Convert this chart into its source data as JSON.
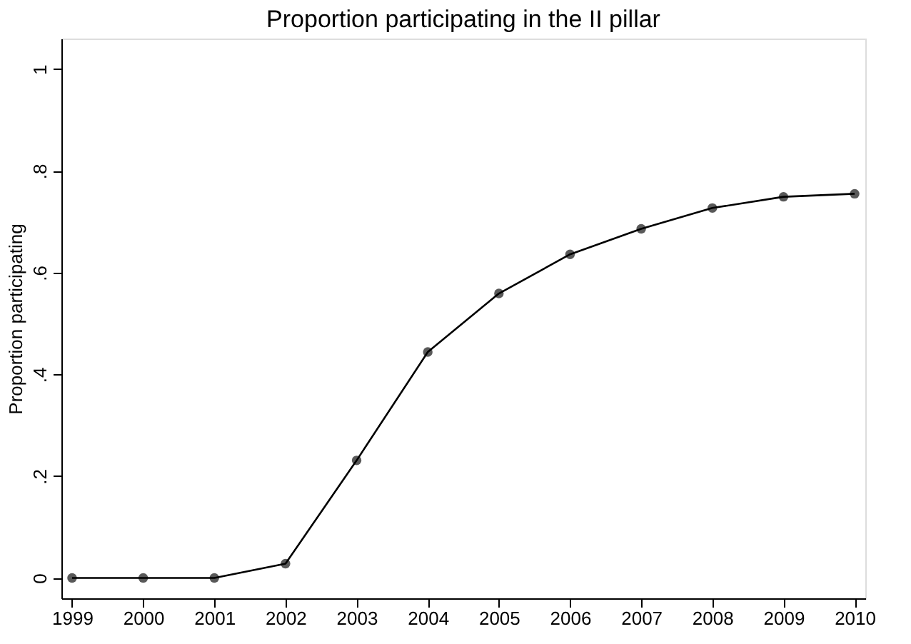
{
  "chart_data": {
    "type": "line",
    "title": "Proportion participating in the II pillar",
    "ylabel": "Proportion participating",
    "x": [
      1999,
      2000,
      2001,
      2002,
      2003,
      2004,
      2005,
      2006,
      2007,
      2008,
      2009,
      2010
    ],
    "series": [
      {
        "color": "#000000",
        "values": [
          0,
          0,
          0,
          0.028,
          0.231,
          0.444,
          0.559,
          0.636,
          0.686,
          0.727,
          0.749,
          0.755
        ]
      }
    ],
    "xlim": [
      1998.85,
      2010.15
    ],
    "xticks": [
      1999,
      2000,
      2001,
      2002,
      2003,
      2004,
      2005,
      2006,
      2007,
      2008,
      2009,
      2010
    ],
    "ylim": [
      -0.04,
      1.06
    ],
    "yticks": [
      0,
      {
        "value": 0.2,
        "label": ".2"
      },
      {
        "value": 0.4,
        "label": ".4"
      },
      {
        "value": 0.6,
        "label": ".6"
      },
      {
        "value": 0.8,
        "label": ".8"
      },
      1
    ],
    "grid": false,
    "marker": "circle",
    "line_style": "solid"
  }
}
